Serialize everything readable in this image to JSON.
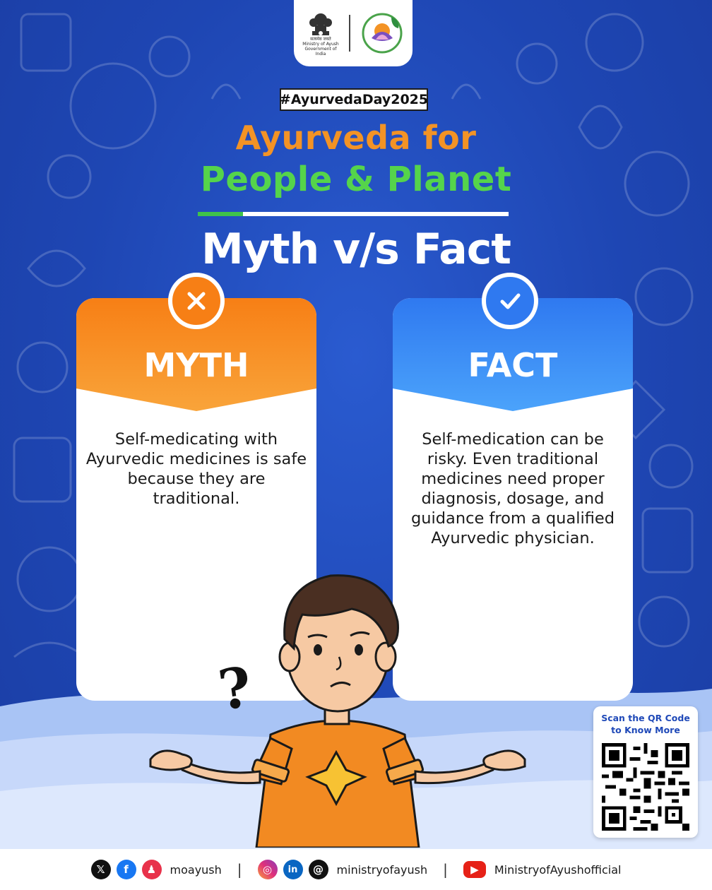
{
  "hashtag": "#AyurvedaDay2025",
  "title": {
    "line1": "Ayurveda for",
    "line2": "People & Planet"
  },
  "headline": "Myth v/s Fact",
  "logos": {
    "emblem_caption_1": "सत्यमेव जयते",
    "emblem_caption_2": "Ministry of Ayush",
    "emblem_caption_3": "Government of India"
  },
  "myth": {
    "label": "MYTH",
    "text": "Self-medicating with Ayurvedic medicines is safe because they are traditional."
  },
  "fact": {
    "label": "FACT",
    "text": "Self-medication can be risky. Even traditional medicines need proper diagnosis, dosage, and guidance from a qualified Ayurvedic physician."
  },
  "qr": {
    "caption_line1": "Scan the QR Code",
    "caption_line2": "to Know More"
  },
  "footer": {
    "handle1": "moayush",
    "handle2": "ministryofayush",
    "handle3": "MinistryofAyushofficial",
    "separator": "|"
  },
  "colors": {
    "background": "#1f49b8",
    "myth_accent": "#f77f15",
    "fact_accent": "#2f79f0",
    "title_orange": "#f39325",
    "title_green": "#55d44b"
  },
  "icons": {
    "myth_badge": "close-icon",
    "fact_badge": "check-icon",
    "decor": "question-mark",
    "social": [
      "x-icon",
      "facebook-icon",
      "koo-icon",
      "instagram-icon",
      "linkedin-icon",
      "threads-icon",
      "youtube-icon"
    ]
  }
}
